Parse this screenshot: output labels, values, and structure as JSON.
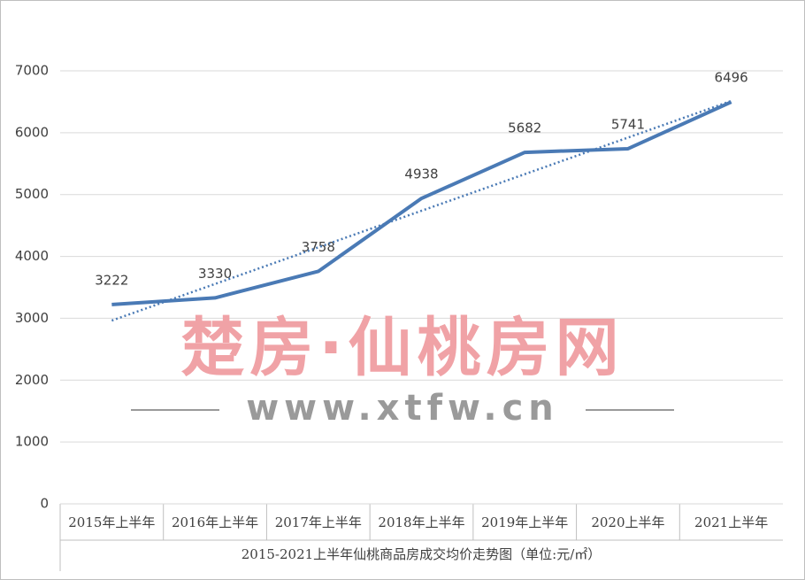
{
  "chart_data": {
    "type": "line",
    "x_label": "2015-2021上半年仙桃商品房成交均价走势图（单位:元/㎡）",
    "categories": [
      "2015年上半年",
      "2016年上半年",
      "2017年上半年",
      "2018年上半年",
      "2019年上半年",
      "2020上半年",
      "2021上半年"
    ],
    "series": [
      {
        "color": "#4a7ab5",
        "values": [
          3222,
          3330,
          3758,
          4938,
          5682,
          5741,
          6496
        ]
      }
    ],
    "trendline": {
      "style": "dotted",
      "color": "#4a7ab5",
      "values": [
        2963,
        6513
      ]
    },
    "ylim": [
      0,
      7000
    ],
    "yticks": [
      0,
      1000,
      2000,
      3000,
      4000,
      5000,
      6000,
      7000
    ],
    "grid": true,
    "data_labels": true,
    "watermark": {
      "title": "楚房·仙桃房网",
      "url": "www.xtfw.cn"
    }
  }
}
